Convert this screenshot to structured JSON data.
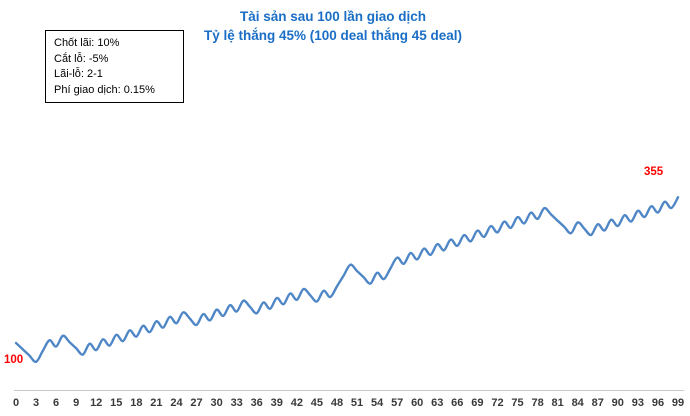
{
  "title": {
    "line1": "Tài sản sau 100 lần giao dịch",
    "line2": "Tỷ lệ thắng 45% (100 deal thắng 45 deal)"
  },
  "params": {
    "lines": [
      "Chốt lãi: 10%",
      "Cắt lỗ: -5%",
      "Lãi-lỗ: 2-1",
      "Phí giao dịch: 0.15%"
    ]
  },
  "colors": {
    "title": "#1a6ec5",
    "line": "#4f86c6",
    "label_red": "#ff0000",
    "axis": "#c9c9c9",
    "tick_text": "#3a3a3a"
  },
  "chart_data": {
    "type": "line",
    "title": "Tài sản sau 100 lần giao dịch",
    "subtitle": "Tỷ lệ thắng 45% (100 deal thắng 45 deal)",
    "y_scale": "log",
    "grid": false,
    "legend_position": "none",
    "start_value": 100,
    "end_value": 355,
    "win_rate_percent": 45,
    "deals_total": 100,
    "deals_won": 45,
    "take_profit_percent": 10,
    "stop_loss_percent": -5,
    "reward_risk": "2-1",
    "fee_percent": 0.15,
    "first_point_label": "100",
    "last_point_label": "355",
    "x_ticks": [
      0,
      3,
      6,
      9,
      12,
      15,
      18,
      21,
      24,
      27,
      30,
      33,
      36,
      39,
      42,
      45,
      48,
      51,
      54,
      57,
      60,
      63,
      66,
      69,
      72,
      75,
      78,
      81,
      84,
      87,
      90,
      93,
      96,
      99
    ],
    "values": [
      100,
      94.7,
      89.7,
      84.9,
      93.3,
      102.4,
      97,
      106.5,
      100.8,
      95.5,
      90.4,
      99.3,
      94,
      103.2,
      97.8,
      107.3,
      101.7,
      111.6,
      105.7,
      116.1,
      109.9,
      120.7,
      114.3,
      125.5,
      118.8,
      130.5,
      123.6,
      117,
      128.5,
      121.7,
      133.6,
      126.5,
      138.9,
      131.5,
      144.4,
      136.8,
      129.5,
      142.2,
      134.7,
      147.9,
      140.1,
      153.8,
      145.6,
      159.9,
      151.4,
      143.4,
      157.4,
      149.1,
      163.7,
      179.8,
      197.4,
      186.9,
      177,
      167.6,
      184.1,
      174.3,
      191.4,
      210.1,
      199,
      218.5,
      206.9,
      227.2,
      215.2,
      236.2,
      223.7,
      245.6,
      232.6,
      255.4,
      241.9,
      265.6,
      251.5,
      276.2,
      261.5,
      287.2,
      271.9,
      298.6,
      282.8,
      310.5,
      294,
      322.8,
      305.7,
      289.5,
      274.2,
      259.6,
      285.1,
      270,
      255.7,
      280.7,
      265.8,
      291.9,
      276.4,
      303.5,
      287.4,
      315.6,
      298.9,
      328.1,
      310.8,
      341.2,
      323.1,
      354.8
    ]
  }
}
